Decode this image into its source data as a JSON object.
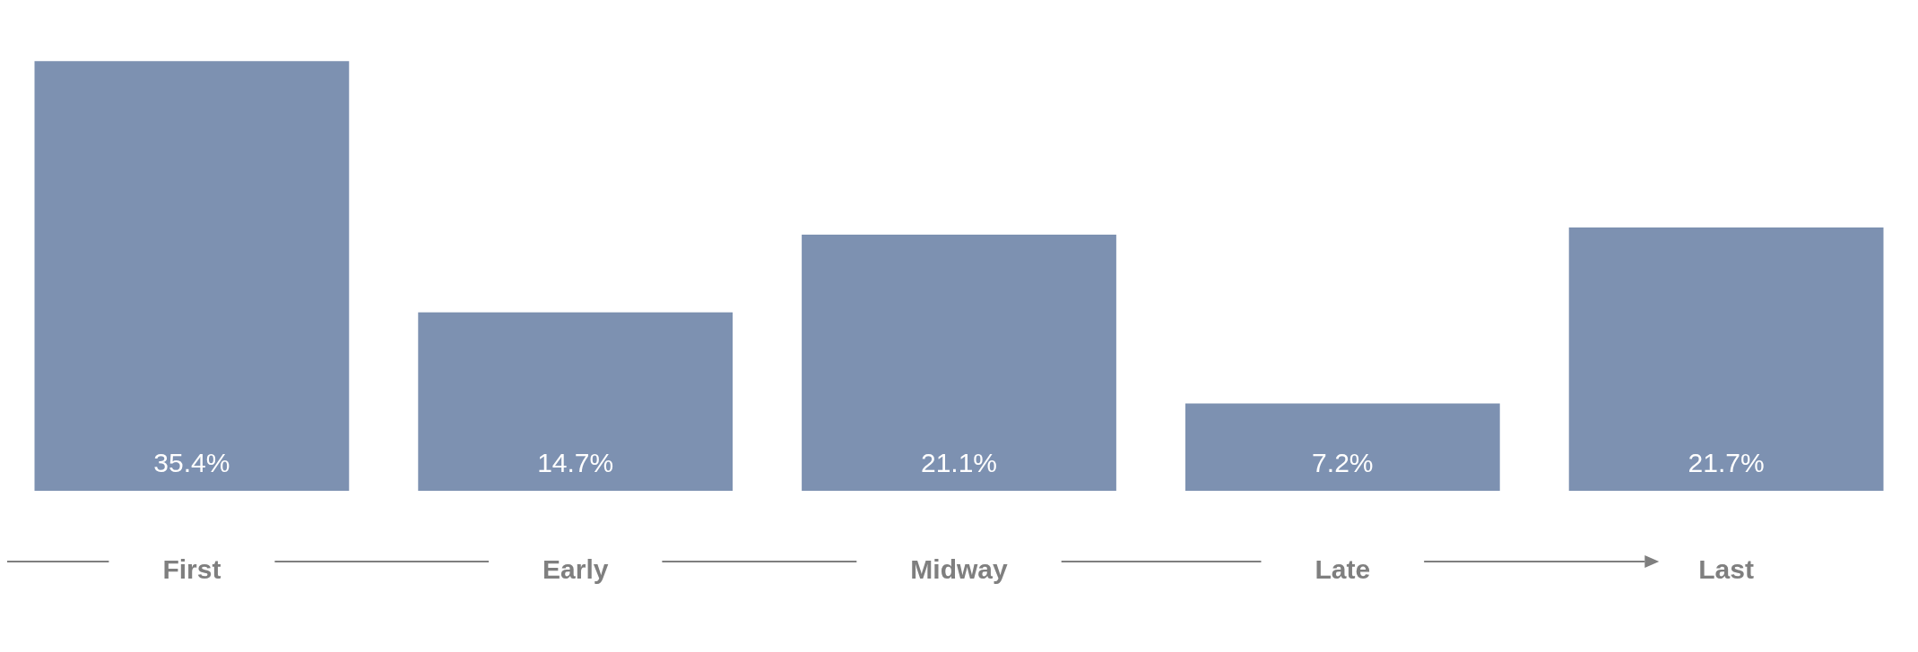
{
  "chart_data": {
    "type": "bar",
    "categories": [
      "First",
      "Early",
      "Midway",
      "Late",
      "Last"
    ],
    "values": [
      35.4,
      14.7,
      21.1,
      7.2,
      21.7
    ],
    "value_labels": [
      "35.4%",
      "14.7%",
      "21.1%",
      "7.2%",
      "21.7%"
    ],
    "color": "#7d91b1",
    "grid": false,
    "legend": false
  }
}
